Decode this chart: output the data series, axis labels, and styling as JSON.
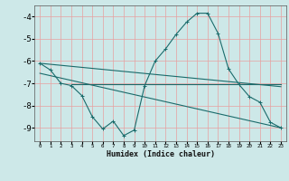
{
  "xlabel": "Humidex (Indice chaleur)",
  "xlim": [
    -0.5,
    23.5
  ],
  "ylim": [
    -9.6,
    -3.5
  ],
  "yticks": [
    -4,
    -5,
    -6,
    -7,
    -8,
    -9
  ],
  "xticks": [
    0,
    1,
    2,
    3,
    4,
    5,
    6,
    7,
    8,
    9,
    10,
    11,
    12,
    13,
    14,
    15,
    16,
    17,
    18,
    19,
    20,
    21,
    22,
    23
  ],
  "bg_color": "#cde8e8",
  "grid_color_v": "#e8a0a0",
  "grid_color_h": "#e8a0a0",
  "line_color": "#1a6b6b",
  "curve1_x": [
    0,
    1,
    2,
    3,
    4,
    5,
    6,
    7,
    8,
    9,
    10,
    11,
    12,
    13,
    14,
    15,
    16,
    17,
    18,
    19,
    20,
    21,
    22,
    23
  ],
  "curve1_y": [
    -6.1,
    -6.4,
    -7.0,
    -7.1,
    -7.55,
    -8.5,
    -9.05,
    -8.7,
    -9.35,
    -9.1,
    -7.1,
    -6.0,
    -5.45,
    -4.8,
    -4.25,
    -3.85,
    -3.85,
    -4.75,
    -6.35,
    -7.05,
    -7.6,
    -7.85,
    -8.75,
    -9.0
  ],
  "curve2_x": [
    0,
    23
  ],
  "curve2_y": [
    -6.1,
    -7.15
  ],
  "curve3_x": [
    0,
    23
  ],
  "curve3_y": [
    -6.55,
    -9.0
  ],
  "curve4_x": [
    3,
    23
  ],
  "curve4_y": [
    -7.05,
    -7.05
  ]
}
